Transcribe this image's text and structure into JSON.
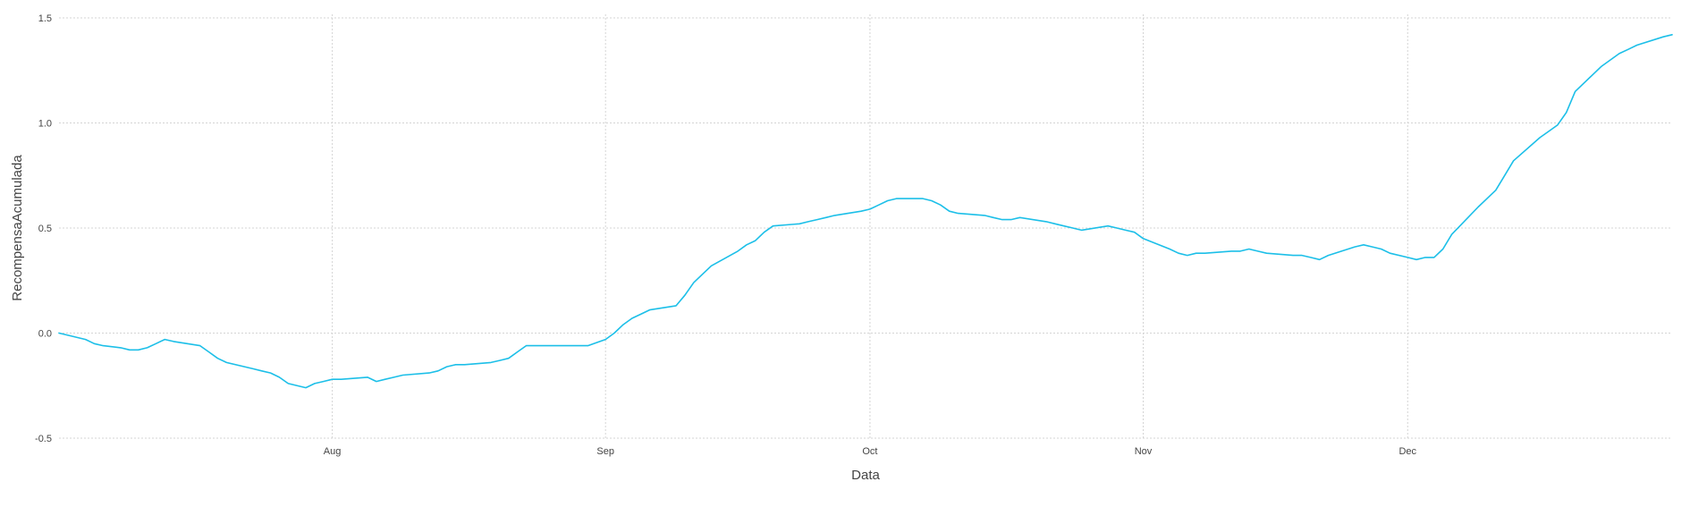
{
  "chart_data": {
    "type": "line",
    "title": "",
    "xlabel": "Data",
    "ylabel": "RecompensaAcumulada",
    "x_type": "date",
    "xlim": [
      "2025-07-01",
      "2025-12-31"
    ],
    "ylim": [
      -0.5,
      1.5
    ],
    "y_ticks": [
      -0.5,
      0.0,
      0.5,
      1.0,
      1.5
    ],
    "y_tick_labels": [
      "-0.5",
      "0.0",
      "0.5",
      "1.0",
      "1.5"
    ],
    "x_ticks": [
      "2025-08-01",
      "2025-09-01",
      "2025-10-01",
      "2025-11-01",
      "2025-12-01"
    ],
    "x_tick_labels": [
      "Aug",
      "Sep",
      "Oct",
      "Nov",
      "Dec"
    ],
    "grid": true,
    "line_color": "#1cbfe8",
    "series": [
      {
        "x": [
          "2025-07-01",
          "2025-07-02",
          "2025-07-04",
          "2025-07-05",
          "2025-07-06",
          "2025-07-08",
          "2025-07-09",
          "2025-07-10",
          "2025-07-11",
          "2025-07-12",
          "2025-07-13",
          "2025-07-14",
          "2025-07-17",
          "2025-07-18",
          "2025-07-19",
          "2025-07-20",
          "2025-07-23",
          "2025-07-24",
          "2025-07-25",
          "2025-07-26",
          "2025-07-27",
          "2025-07-29",
          "2025-07-30",
          "2025-07-31",
          "2025-08-01",
          "2025-08-02",
          "2025-08-05",
          "2025-08-06",
          "2025-08-07",
          "2025-08-08",
          "2025-08-09",
          "2025-08-12",
          "2025-08-13",
          "2025-08-14",
          "2025-08-15",
          "2025-08-16",
          "2025-08-19",
          "2025-08-20",
          "2025-08-21",
          "2025-08-22",
          "2025-08-23",
          "2025-08-26",
          "2025-08-27",
          "2025-08-28",
          "2025-08-29",
          "2025-08-30",
          "2025-09-01",
          "2025-09-02",
          "2025-09-03",
          "2025-09-04",
          "2025-09-05",
          "2025-09-06",
          "2025-09-09",
          "2025-09-10",
          "2025-09-11",
          "2025-09-12",
          "2025-09-13",
          "2025-09-16",
          "2025-09-17",
          "2025-09-18",
          "2025-09-19",
          "2025-09-20",
          "2025-09-23",
          "2025-09-24",
          "2025-09-25",
          "2025-09-26",
          "2025-09-27",
          "2025-09-30",
          "2025-10-01",
          "2025-10-02",
          "2025-10-03",
          "2025-10-04",
          "2025-10-07",
          "2025-10-08",
          "2025-10-09",
          "2025-10-10",
          "2025-10-11",
          "2025-10-14",
          "2025-10-15",
          "2025-10-16",
          "2025-10-17",
          "2025-10-18",
          "2025-10-21",
          "2025-10-22",
          "2025-10-23",
          "2025-10-24",
          "2025-10-25",
          "2025-10-28",
          "2025-10-29",
          "2025-10-30",
          "2025-10-31",
          "2025-11-01",
          "2025-11-04",
          "2025-11-05",
          "2025-11-06",
          "2025-11-07",
          "2025-11-08",
          "2025-11-11",
          "2025-11-12",
          "2025-11-13",
          "2025-11-14",
          "2025-11-15",
          "2025-11-18",
          "2025-11-19",
          "2025-11-20",
          "2025-11-21",
          "2025-11-22",
          "2025-11-25",
          "2025-11-26",
          "2025-11-27",
          "2025-11-28",
          "2025-11-29",
          "2025-12-01",
          "2025-12-02",
          "2025-12-03",
          "2025-12-04",
          "2025-12-05",
          "2025-12-06",
          "2025-12-09",
          "2025-12-10",
          "2025-12-11",
          "2025-12-12",
          "2025-12-13",
          "2025-12-16",
          "2025-12-17",
          "2025-12-18",
          "2025-12-19",
          "2025-12-20",
          "2025-12-23",
          "2025-12-24",
          "2025-12-25",
          "2025-12-26",
          "2025-12-27",
          "2025-12-30",
          "2025-12-31"
        ],
        "values": [
          0.0,
          -0.01,
          -0.03,
          -0.05,
          -0.06,
          -0.07,
          -0.08,
          -0.08,
          -0.07,
          -0.05,
          -0.03,
          -0.04,
          -0.06,
          -0.09,
          -0.12,
          -0.14,
          -0.17,
          -0.18,
          -0.19,
          -0.21,
          -0.24,
          -0.26,
          -0.24,
          -0.23,
          -0.22,
          -0.22,
          -0.21,
          -0.23,
          -0.22,
          -0.21,
          -0.2,
          -0.19,
          -0.18,
          -0.16,
          -0.15,
          -0.15,
          -0.14,
          -0.13,
          -0.12,
          -0.09,
          -0.06,
          -0.06,
          -0.06,
          -0.06,
          -0.06,
          -0.06,
          -0.03,
          0.0,
          0.04,
          0.07,
          0.09,
          0.11,
          0.13,
          0.18,
          0.24,
          0.28,
          0.32,
          0.39,
          0.42,
          0.44,
          0.48,
          0.51,
          0.52,
          0.53,
          0.54,
          0.55,
          0.56,
          0.58,
          0.59,
          0.61,
          0.63,
          0.64,
          0.64,
          0.63,
          0.61,
          0.58,
          0.57,
          0.56,
          0.55,
          0.54,
          0.54,
          0.55,
          0.53,
          0.52,
          0.51,
          0.5,
          0.49,
          0.51,
          0.5,
          0.49,
          0.48,
          0.45,
          0.4,
          0.38,
          0.37,
          0.38,
          0.38,
          0.39,
          0.39,
          0.4,
          0.39,
          0.38,
          0.37,
          0.37,
          0.36,
          0.35,
          0.37,
          0.41,
          0.42,
          0.41,
          0.4,
          0.38,
          0.36,
          0.35,
          0.36,
          0.36,
          0.4,
          0.47,
          0.6,
          0.64,
          0.68,
          0.75,
          0.82,
          0.93,
          0.96,
          0.99,
          1.05,
          1.15,
          1.27,
          1.3,
          1.33,
          1.35,
          1.37,
          1.41,
          1.42
        ]
      }
    ]
  }
}
